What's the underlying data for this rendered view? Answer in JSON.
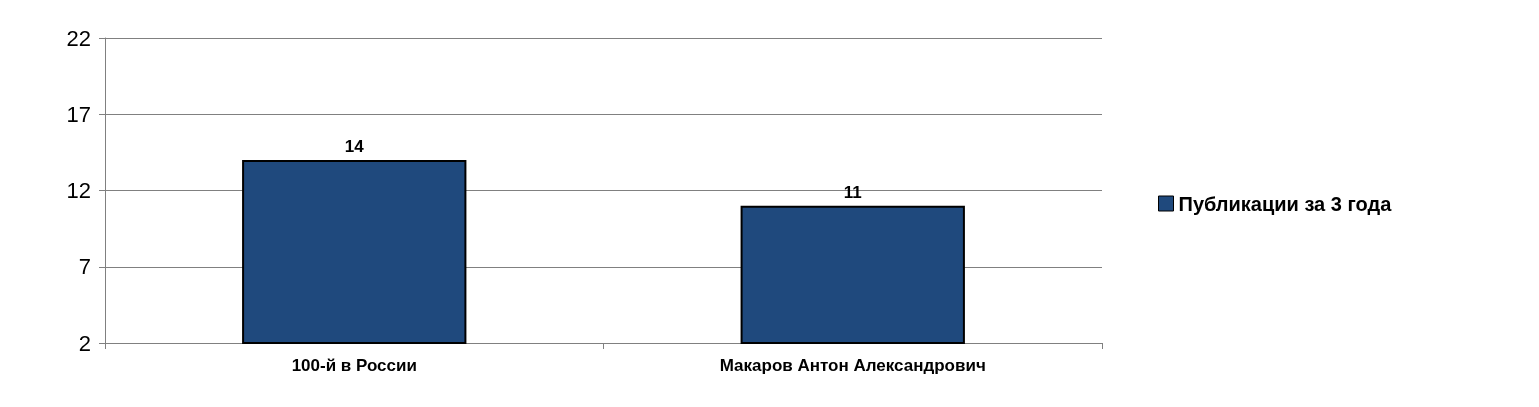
{
  "chart_data": {
    "type": "bar",
    "categories": [
      "100-й в России",
      "Макаров Антон Александрович"
    ],
    "series": [
      {
        "name": "Публикации за 3 года",
        "color": "#1f497d",
        "values": [
          14,
          11
        ]
      }
    ],
    "ylim": [
      2,
      22
    ],
    "yticks": [
      2,
      7,
      12,
      17,
      22
    ],
    "grid": "y",
    "legend": "right",
    "data_labels": true
  }
}
